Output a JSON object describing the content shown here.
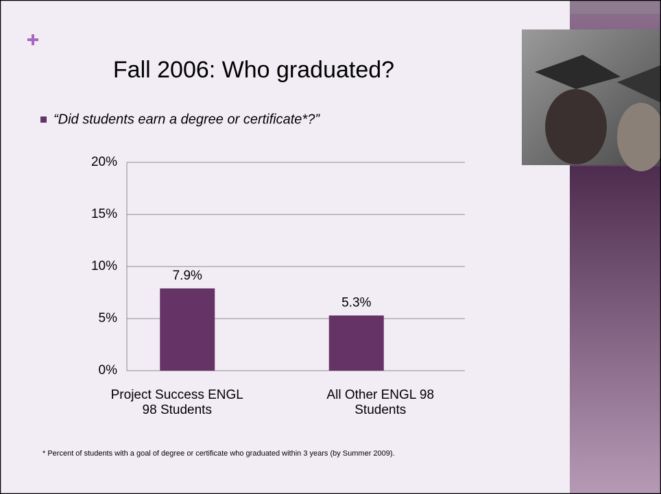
{
  "chart_data": {
    "type": "bar",
    "title": "Fall 2006: Who graduated?",
    "subtitle": "“Did students earn a degree or certificate*?”",
    "annotations": [
      "* Percent of students with a goal of degree or certificate who graduated within 3 years (by Summer 2009)."
    ],
    "categories": [
      "Project Success ENGL 98 Students",
      "All Other ENGL 98 Students"
    ],
    "values": [
      7.9,
      5.3
    ],
    "value_labels": [
      "7.9%",
      "5.3%"
    ],
    "color": "#663366",
    "ylim": [
      0,
      20
    ],
    "yticks": [
      {
        "value": 0,
        "label": "0%"
      },
      {
        "value": 5,
        "label": "5%"
      },
      {
        "value": 10,
        "label": "10%"
      },
      {
        "value": 15,
        "label": "15%"
      },
      {
        "value": 20,
        "label": "20%"
      }
    ],
    "grid": true
  }
}
